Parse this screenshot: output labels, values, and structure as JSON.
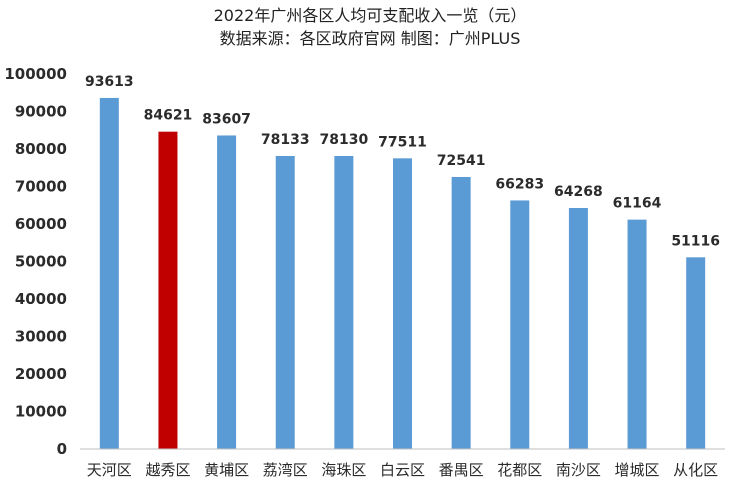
{
  "chart_data": {
    "type": "bar",
    "title": "2022年广州各区人均可支配收入一览（元）",
    "subtitle": "数据来源：各区政府官网 制图：广州PLUS",
    "xlabel": "",
    "ylabel": "",
    "categories": [
      "天河区",
      "越秀区",
      "黄埔区",
      "荔湾区",
      "海珠区",
      "白云区",
      "番禺区",
      "花都区",
      "南沙区",
      "增城区",
      "从化区"
    ],
    "values": [
      93613,
      84621,
      83607,
      78133,
      78130,
      77511,
      72541,
      66283,
      64268,
      61164,
      51116
    ],
    "data_labels": [
      "93613",
      "84621",
      "83607",
      "78133",
      "78130",
      "77511",
      "72541",
      "66283",
      "64268",
      "61164",
      "51116"
    ],
    "ylim": [
      0,
      100000
    ],
    "yticks": [
      0,
      10000,
      20000,
      30000,
      40000,
      50000,
      60000,
      70000,
      80000,
      90000,
      100000
    ],
    "ytick_labels": [
      "0",
      "10000",
      "20000",
      "30000",
      "40000",
      "50000",
      "60000",
      "70000",
      "80000",
      "90000",
      "100000"
    ],
    "grid": false,
    "legend": "none",
    "colors": {
      "default": "#5b9bd5",
      "highlight": "#c00000",
      "highlight_category": "越秀区"
    }
  }
}
